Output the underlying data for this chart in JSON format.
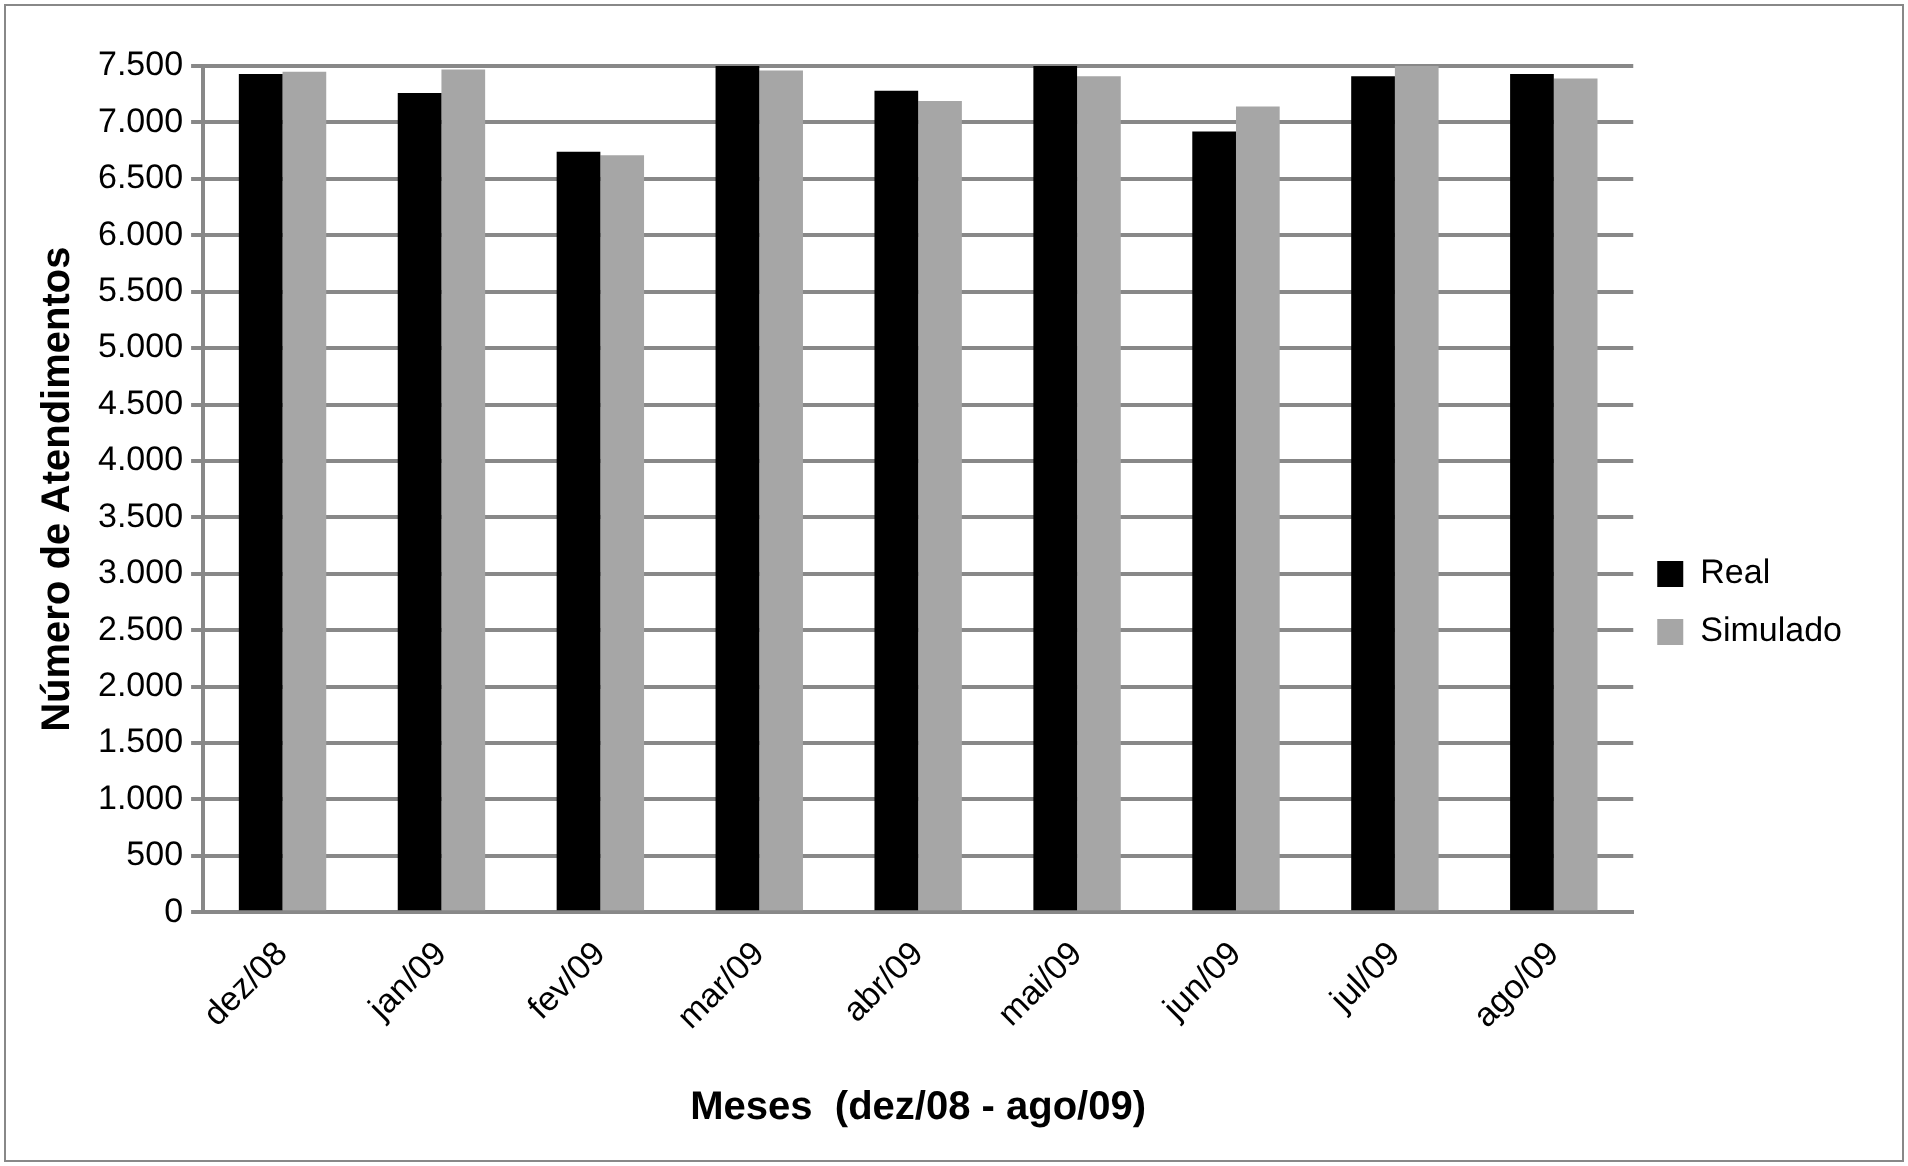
{
  "chart_data": {
    "type": "bar",
    "xlabel": "Meses  (dez/08 - ago/09)",
    "ylabel": "Número de Atendimentos",
    "categories": [
      "dez/08",
      "jan/09",
      "fev/09",
      "mar/09",
      "abr/09",
      "mai/09",
      "jun/09",
      "jul/09",
      "ago/09"
    ],
    "series": [
      {
        "name": "Real",
        "color": "#000000",
        "values": [
          7430,
          7260,
          6740,
          7500,
          7280,
          7500,
          6920,
          7410,
          7430
        ]
      },
      {
        "name": "Simulado",
        "color": "#a6a6a6",
        "values": [
          7450,
          7470,
          6710,
          7460,
          7190,
          7410,
          7140,
          7500,
          7390
        ]
      }
    ],
    "ylim": [
      0,
      7500
    ],
    "yticks": [
      {
        "value": 0,
        "label": "0"
      },
      {
        "value": 500,
        "label": "500"
      },
      {
        "value": 1000,
        "label": "1.000"
      },
      {
        "value": 1500,
        "label": "1.500"
      },
      {
        "value": 2000,
        "label": "2.000"
      },
      {
        "value": 2500,
        "label": "2.500"
      },
      {
        "value": 3000,
        "label": "3.000"
      },
      {
        "value": 3500,
        "label": "3.500"
      },
      {
        "value": 4000,
        "label": "4.000"
      },
      {
        "value": 4500,
        "label": "4.500"
      },
      {
        "value": 5000,
        "label": "5.000"
      },
      {
        "value": 5500,
        "label": "5.500"
      },
      {
        "value": 6000,
        "label": "6.000"
      },
      {
        "value": 6500,
        "label": "6.500"
      },
      {
        "value": 7000,
        "label": "7.000"
      },
      {
        "value": 7500,
        "label": "7.500"
      }
    ],
    "grid": "y",
    "legend": "right"
  }
}
